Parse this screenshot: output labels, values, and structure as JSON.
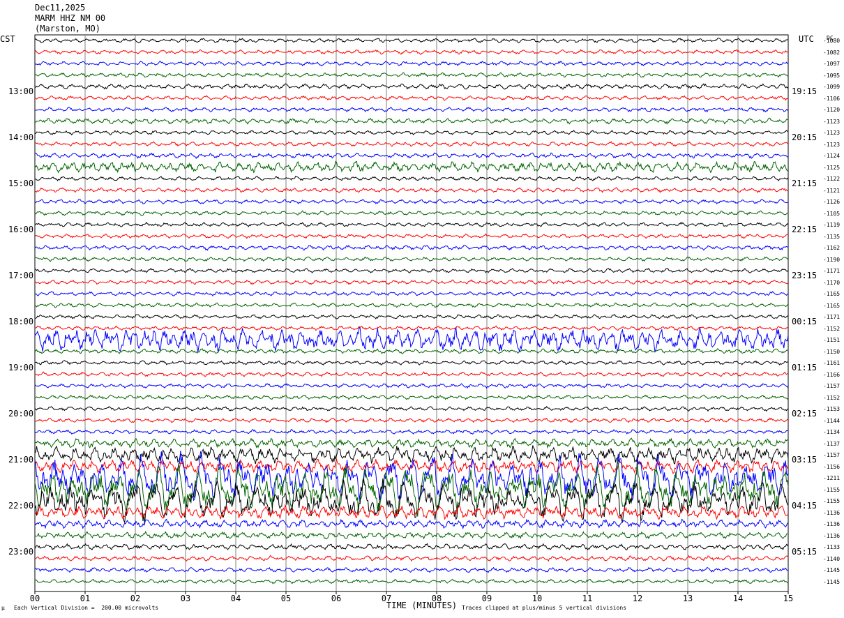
{
  "header": {
    "date": "Dec11,2025",
    "station": "MARM HHZ NM 00",
    "location": "(Marston, MO)"
  },
  "left_tz": "CST",
  "right_tz": "UTC",
  "dc_label": "DC",
  "footer": {
    "scale_mark": "µ",
    "division_note": "Each Vertical Division =  200.00 microvolts",
    "xlabel": "TIME (MINUTES)",
    "clip_note": "Traces clipped at plus/minus 5 vertical divisions"
  },
  "colors": {
    "trace_cycle": [
      "#000000",
      "#ff0000",
      "#0000ff",
      "#006400"
    ],
    "grid": "#808080"
  },
  "chart_data": {
    "type": "line",
    "title": "Dec11,2025 MARM HHZ NM 00 (Marston, MO)",
    "xlabel": "TIME (MINUTES)",
    "ylabel": "",
    "xlim": [
      0,
      15
    ],
    "x_ticks": [
      "00",
      "01",
      "02",
      "03",
      "04",
      "05",
      "06",
      "07",
      "08",
      "09",
      "10",
      "11",
      "12",
      "13",
      "14",
      "15"
    ],
    "trace_count": 48,
    "trace_minutes": 15,
    "hour_labels_local": [
      "13:00",
      "14:00",
      "15:00",
      "16:00",
      "17:00",
      "18:00",
      "19:00",
      "20:00",
      "21:00",
      "22:00",
      "23:00"
    ],
    "hour_labels_utc": [
      "19:15",
      "20:15",
      "21:15",
      "22:15",
      "23:15",
      "00:15",
      "01:15",
      "02:15",
      "03:15",
      "04:15",
      "05:15"
    ],
    "dc_offsets": [
      -1080,
      -1082,
      -1097,
      -1095,
      -1099,
      -1106,
      -1120,
      -1123,
      -1123,
      -1123,
      -1124,
      -1125,
      -1122,
      -1121,
      -1126,
      -1105,
      -1119,
      -1135,
      -1162,
      -1190,
      -1171,
      -1170,
      -1165,
      -1165,
      -1171,
      -1152,
      -1151,
      -1150,
      -1161,
      -1166,
      -1157,
      -1152,
      -1153,
      -1144,
      -1134,
      -1137,
      -1157,
      -1156,
      -1211,
      -1155,
      -1155,
      -1136,
      -1136,
      -1136,
      -1133,
      -1140,
      -1145,
      -1145
    ],
    "noise_amplitude": [
      1,
      1,
      1,
      1,
      1.2,
      1,
      1,
      1.3,
      1,
      1,
      1.2,
      2.6,
      1,
      1.1,
      1,
      1,
      1,
      1,
      1.1,
      1,
      1,
      1,
      1,
      1,
      1,
      1,
      5.5,
      1.1,
      1,
      1,
      1,
      1,
      1,
      1,
      1,
      2.2,
      4,
      3.2,
      8,
      8,
      7,
      3.2,
      2,
      1.6,
      1.4,
      1.2,
      1.1,
      1
    ],
    "scale": "200.00 microvolts per division",
    "clip": "plus/minus 5 vertical divisions"
  }
}
